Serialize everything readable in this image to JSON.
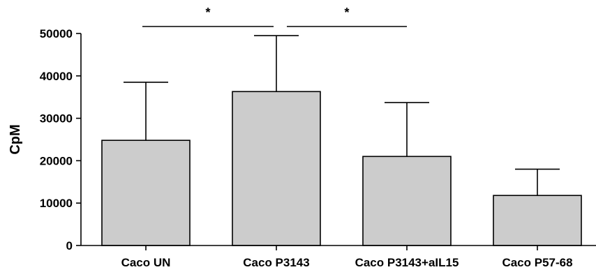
{
  "chart_data": {
    "type": "bar",
    "title": "",
    "xlabel": "",
    "ylabel": "CpM",
    "categories": [
      "Caco UN",
      "Caco P3143",
      "Caco P3143+aIL15",
      "Caco P57-68"
    ],
    "values": [
      24800,
      36300,
      21000,
      11800
    ],
    "error_upper": [
      38500,
      49500,
      33700,
      18000
    ],
    "ylim": [
      0,
      50000
    ],
    "yticks": [
      {
        "value": 0,
        "label": "0"
      },
      {
        "value": 10000,
        "label": "10000"
      },
      {
        "value": 20000,
        "label": "20000"
      },
      {
        "value": 30000,
        "label": "30000"
      },
      {
        "value": 40000,
        "label": "40000"
      },
      {
        "value": 50000,
        "label": "50000"
      }
    ],
    "bar_color": "#cccccc",
    "edge_color": "#000000",
    "grid": false,
    "annotations": [
      {
        "from": 0,
        "to": 1,
        "label": "*"
      },
      {
        "from": 1,
        "to": 2,
        "label": "*"
      }
    ]
  }
}
